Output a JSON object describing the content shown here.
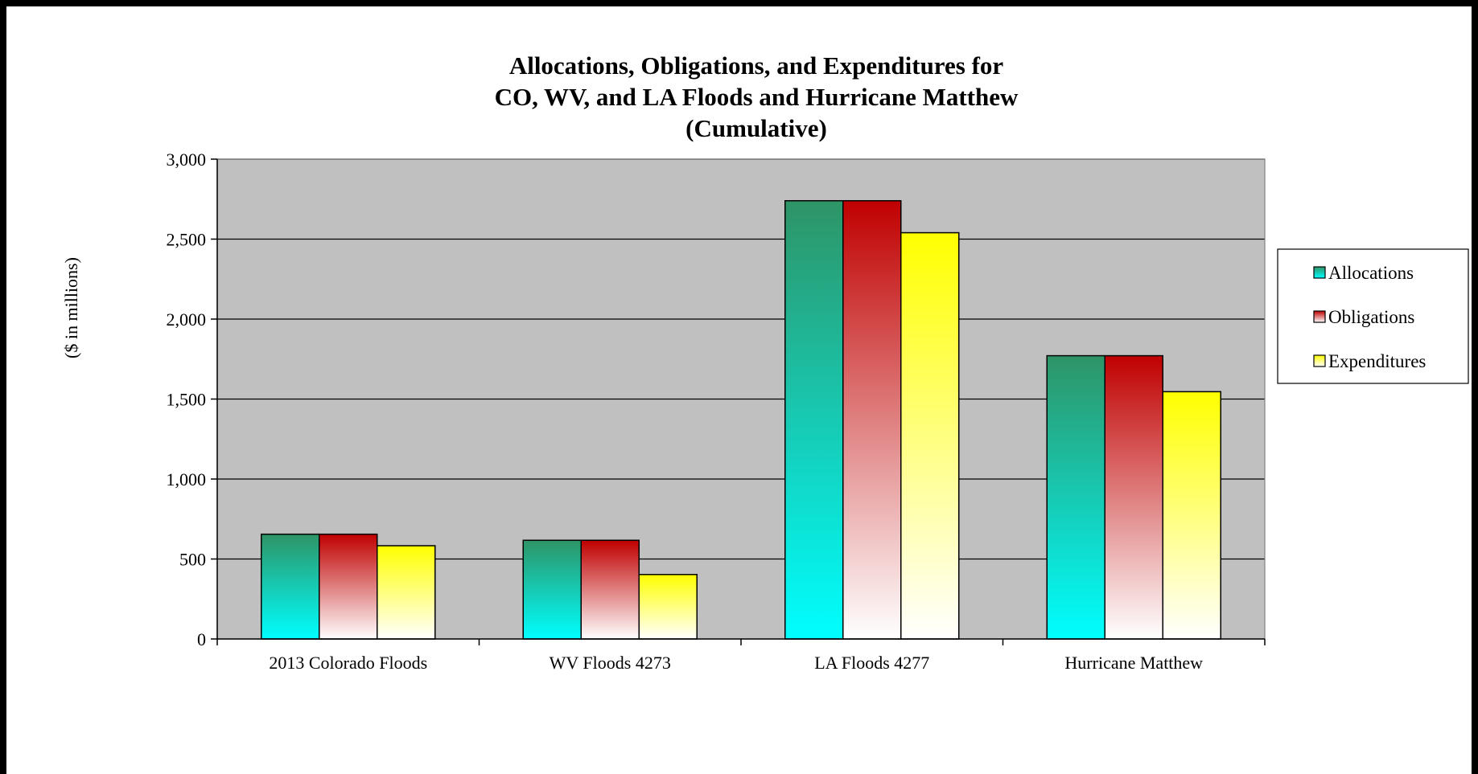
{
  "chart_data": {
    "type": "bar",
    "title_lines": [
      "Allocations, Obligations, and Expenditures for",
      "CO, WV, and LA Floods and Hurricane Matthew",
      "(Cumulative)"
    ],
    "xlabel": "",
    "ylabel": "($ in millions)",
    "ylim": [
      0,
      3000
    ],
    "yticks": [
      0,
      500,
      1000,
      1500,
      2000,
      2500,
      3000
    ],
    "ytick_labels": [
      "0",
      "500",
      "1,000",
      "1,500",
      "2,000",
      "2,500",
      "3,000"
    ],
    "categories": [
      "2013 Colorado Floods",
      "WV Floods 4273",
      "LA Floods 4277",
      "Hurricane Matthew"
    ],
    "series": [
      {
        "name": "Allocations",
        "values": [
          655,
          617,
          2740,
          1771
        ],
        "color_top": "#2e9466",
        "color_bottom": "#00ffff"
      },
      {
        "name": "Obligations",
        "values": [
          655,
          617,
          2740,
          1771
        ],
        "color_top": "#c00000",
        "color_bottom": "#ffffff"
      },
      {
        "name": "Expenditures",
        "values": [
          583,
          403,
          2540,
          1546
        ],
        "color_top": "#ffff00",
        "color_bottom": "#ffffff"
      }
    ],
    "grid": true,
    "legend_position": "right",
    "plot_background": "#c0c0c0"
  }
}
